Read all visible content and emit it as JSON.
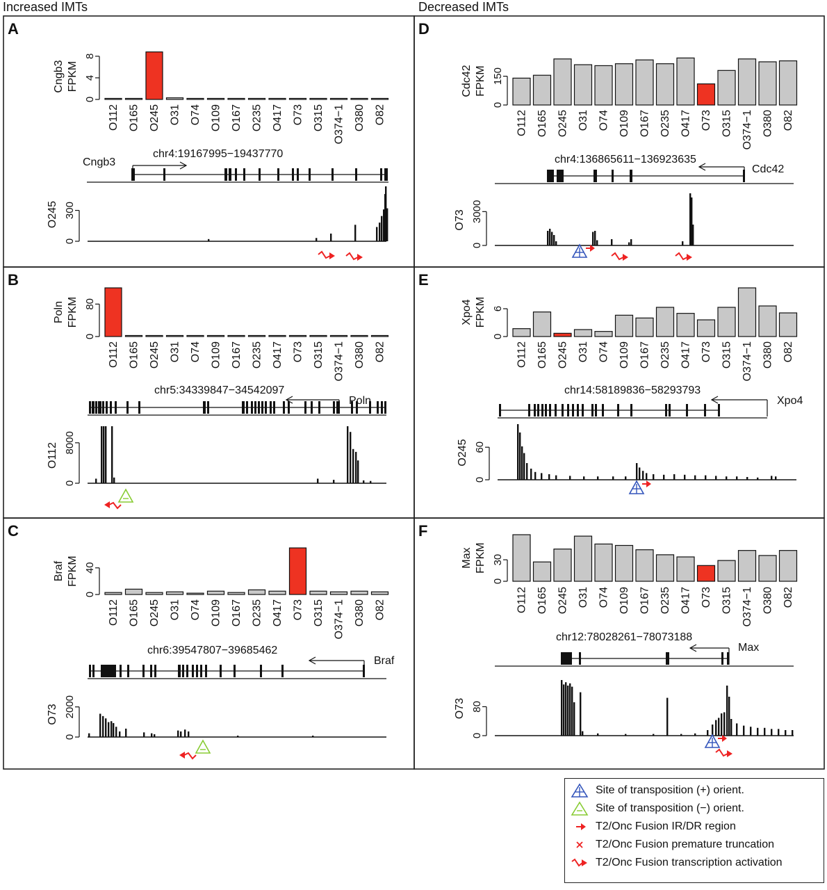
{
  "headers": {
    "left": "Increased IMTs",
    "right": "Decreased IMTs"
  },
  "samples": [
    "O112",
    "O165",
    "O245",
    "O31",
    "O74",
    "O109",
    "O167",
    "O235",
    "O417",
    "O73",
    "O315",
    "O374−1",
    "O380",
    "O82"
  ],
  "colors": {
    "grey_bar": "#c8c8c8",
    "highlight_bar": "#ee3322",
    "plus_marker": "#3355bb",
    "minus_marker": "#88cc33",
    "red_arrow": "#ee2222"
  },
  "chart_data": [
    {
      "panel": "A",
      "type": "bar",
      "gene": "Cngb3",
      "ylabel": [
        "Cngb3",
        "FPKM"
      ],
      "ylim": [
        0,
        8.5
      ],
      "yticks": [
        "0",
        "4",
        "8"
      ],
      "ytick_values": [
        0,
        4,
        8
      ],
      "values": [
        0.05,
        0.05,
        8.8,
        0.3,
        0.05,
        0.05,
        0.05,
        0.05,
        0.05,
        0.05,
        0.05,
        0.05,
        0.05,
        0.05
      ],
      "highlight": 2,
      "locus": "chr4:19167995−19437770",
      "strand": "+",
      "track": {
        "sample": "O245",
        "yticks": [
          "0",
          "300"
        ],
        "ytick_values": [
          0,
          300
        ],
        "ylim": [
          0,
          520
        ]
      },
      "markers": [
        "activation",
        "activation"
      ]
    },
    {
      "panel": "B",
      "type": "bar",
      "gene": "Poln",
      "ylabel": [
        "Poln",
        "FPKM"
      ],
      "ylim": [
        0,
        120
      ],
      "yticks": [
        "0",
        "80"
      ],
      "ytick_values": [
        0,
        80
      ],
      "values": [
        120,
        0.5,
        0.5,
        0.5,
        0.5,
        0.5,
        0.5,
        1.5,
        0.5,
        0.5,
        2.0,
        0.5,
        0.5,
        0.5
      ],
      "highlight": 0,
      "locus": "chr5:34339847−34542097",
      "strand": "−",
      "track": {
        "sample": "O112",
        "yticks": [
          "0",
          "8000"
        ],
        "ytick_values": [
          0,
          8000
        ],
        "ylim": [
          0,
          11000
        ]
      },
      "markers": [
        "minus",
        "activation-left"
      ]
    },
    {
      "panel": "C",
      "type": "bar",
      "gene": "Braf",
      "ylabel": [
        "Braf",
        "FPKM"
      ],
      "ylim": [
        0,
        70
      ],
      "yticks": [
        "0",
        "40"
      ],
      "ytick_values": [
        0,
        40
      ],
      "values": [
        3,
        8,
        3,
        4,
        2,
        5,
        3,
        7,
        5,
        70,
        5,
        4,
        5,
        4
      ],
      "highlight": 9,
      "locus": "chr6:39547807−39685462",
      "strand": "−",
      "track": {
        "sample": "O73",
        "yticks": [
          "0",
          "2000"
        ],
        "ytick_values": [
          0,
          2000
        ],
        "ylim": [
          0,
          3000
        ]
      },
      "markers": [
        "minus",
        "activation-left"
      ]
    },
    {
      "panel": "D",
      "type": "bar",
      "gene": "Cdc42",
      "ylabel": [
        "Cdc42",
        "FPKM"
      ],
      "ylim": [
        0,
        250
      ],
      "yticks": [
        "0",
        "150"
      ],
      "ytick_values": [
        0,
        150
      ],
      "values": [
        140,
        155,
        240,
        210,
        205,
        215,
        235,
        215,
        245,
        110,
        180,
        240,
        225,
        230
      ],
      "highlight": 9,
      "locus": "chr4:136865611−136923635",
      "strand": "−",
      "track": {
        "sample": "O73",
        "yticks": [
          "0",
          "3000"
        ],
        "ytick_values": [
          0,
          3000
        ],
        "ylim": [
          0,
          4500
        ]
      },
      "markers": [
        "plus",
        "activation",
        "activation"
      ]
    },
    {
      "panel": "E",
      "type": "bar",
      "gene": "Xpo4",
      "ylabel": [
        "Xpo4",
        "FPKM"
      ],
      "ylim": [
        0,
        10.5
      ],
      "yticks": [
        "0",
        "6"
      ],
      "ytick_values": [
        0,
        6
      ],
      "values": [
        1.7,
        5.3,
        0.7,
        1.5,
        1.1,
        4.6,
        4.0,
        6.3,
        5.0,
        3.6,
        6.3,
        10.5,
        6.6,
        5.1
      ],
      "highlight": 2,
      "locus": "chr14:58189836−58293793",
      "strand": "−",
      "track": {
        "sample": "O245",
        "yticks": [
          "0",
          "60"
        ],
        "ytick_values": [
          0,
          60
        ],
        "ylim": [
          0,
          100
        ]
      },
      "markers": [
        "plus"
      ]
    },
    {
      "panel": "F",
      "type": "bar",
      "gene": "Max",
      "ylabel": [
        "Max",
        "FPKM"
      ],
      "ylim": [
        0,
        65
      ],
      "yticks": [
        "0",
        "30"
      ],
      "ytick_values": [
        0,
        30
      ],
      "values": [
        65,
        27,
        45,
        63,
        52,
        50,
        44,
        37,
        34,
        22,
        29,
        43,
        36,
        43
      ],
      "highlight": 9,
      "locus": "chr12:78028261−78073188",
      "strand": "−",
      "track": {
        "sample": "O73",
        "yticks": [
          "0",
          "80"
        ],
        "ytick_values": [
          0,
          80
        ],
        "ylim": [
          0,
          150
        ]
      },
      "markers": [
        "plus",
        "activation"
      ]
    }
  ],
  "legend": [
    {
      "icon": "plus-triangle-icon",
      "label": "Site of transposition (+) orient."
    },
    {
      "icon": "minus-triangle-icon",
      "label": "Site of transposition (−) orient."
    },
    {
      "icon": "red-arrow-icon",
      "label": "T2/Onc Fusion IR/DR region"
    },
    {
      "icon": "red-x-icon",
      "label": "T2/Onc Fusion premature truncation"
    },
    {
      "icon": "red-zigzag-arrow-icon",
      "label": "T2/Onc Fusion transcription activation"
    }
  ]
}
